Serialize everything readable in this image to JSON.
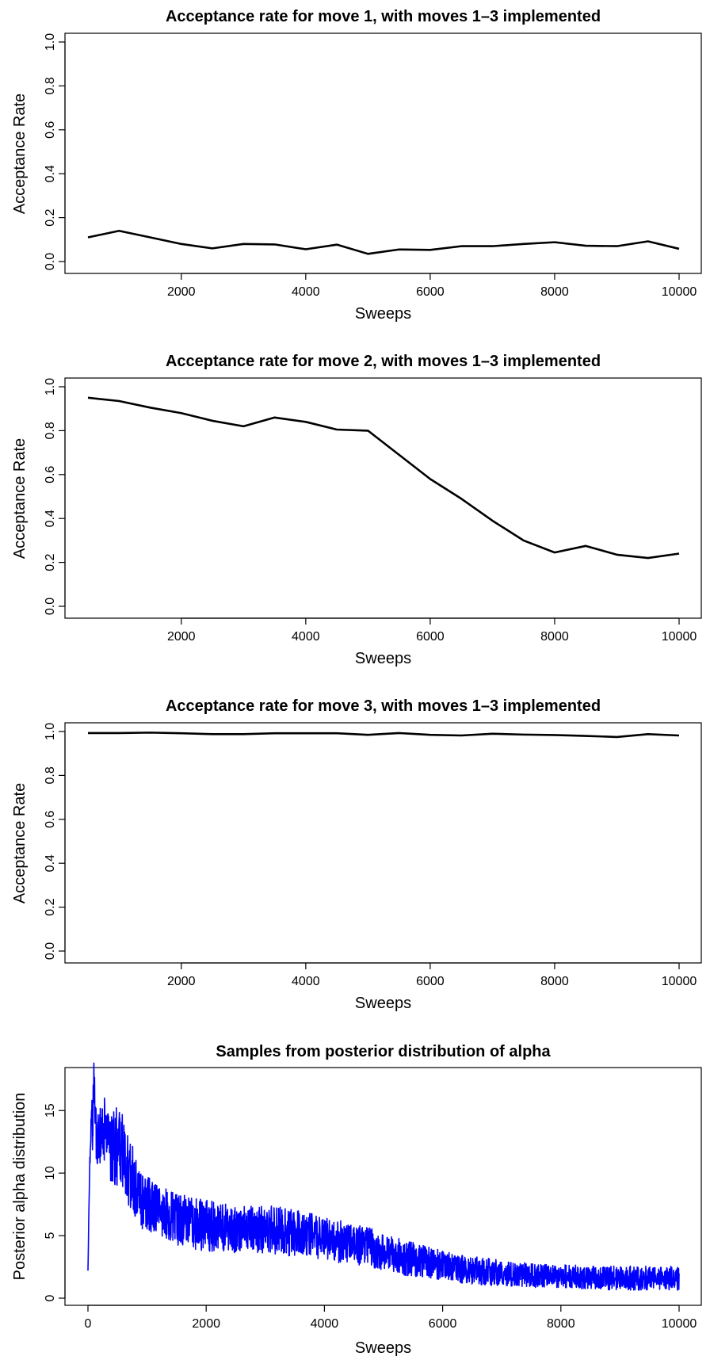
{
  "chart_data": [
    {
      "type": "line",
      "title": "Acceptance rate for move 1, with moves 1–3 implemented",
      "xlabel": "Sweeps",
      "ylabel": "Acceptance Rate",
      "xlim": [
        500,
        10000
      ],
      "ylim": [
        0,
        1
      ],
      "x_ticks": [
        2000,
        4000,
        6000,
        8000,
        10000
      ],
      "x_tick_labels": [
        "2000",
        "4000",
        "6000",
        "8000",
        "10000"
      ],
      "y_ticks": [
        0,
        0.2,
        0.4,
        0.6,
        0.8,
        1.0
      ],
      "y_tick_labels": [
        "0.0",
        "0.2",
        "0.4",
        "0.6",
        "0.8",
        "1.0"
      ],
      "grid": false,
      "series": [
        {
          "color": "#000000",
          "x": [
            500,
            1000,
            1500,
            2000,
            2500,
            3000,
            3500,
            4000,
            4500,
            5000,
            5500,
            6000,
            6500,
            7000,
            7500,
            8000,
            8500,
            9000,
            9500,
            10000
          ],
          "y": [
            0.11,
            0.14,
            0.11,
            0.08,
            0.06,
            0.08,
            0.078,
            0.056,
            0.077,
            0.035,
            0.055,
            0.053,
            0.07,
            0.07,
            0.08,
            0.088,
            0.072,
            0.07,
            0.092,
            0.058
          ]
        }
      ]
    },
    {
      "type": "line",
      "title": "Acceptance rate for move 2, with moves 1–3 implemented",
      "xlabel": "Sweeps",
      "ylabel": "Acceptance Rate",
      "xlim": [
        500,
        10000
      ],
      "ylim": [
        0,
        1
      ],
      "x_ticks": [
        2000,
        4000,
        6000,
        8000,
        10000
      ],
      "x_tick_labels": [
        "2000",
        "4000",
        "6000",
        "8000",
        "10000"
      ],
      "y_ticks": [
        0,
        0.2,
        0.4,
        0.6,
        0.8,
        1.0
      ],
      "y_tick_labels": [
        "0.0",
        "0.2",
        "0.4",
        "0.6",
        "0.8",
        "1.0"
      ],
      "grid": false,
      "series": [
        {
          "color": "#000000",
          "x": [
            500,
            1000,
            1500,
            2000,
            2500,
            3000,
            3500,
            4000,
            4500,
            5000,
            5500,
            6000,
            6500,
            7000,
            7500,
            8000,
            8500,
            9000,
            9500,
            10000
          ],
          "y": [
            0.95,
            0.935,
            0.905,
            0.88,
            0.845,
            0.82,
            0.86,
            0.84,
            0.805,
            0.8,
            0.69,
            0.58,
            0.49,
            0.39,
            0.3,
            0.245,
            0.275,
            0.235,
            0.22,
            0.24
          ]
        }
      ]
    },
    {
      "type": "line",
      "title": "Acceptance rate for move 3, with moves 1–3 implemented",
      "xlabel": "Sweeps",
      "ylabel": "Acceptance Rate",
      "xlim": [
        500,
        10000
      ],
      "ylim": [
        0,
        1
      ],
      "x_ticks": [
        2000,
        4000,
        6000,
        8000,
        10000
      ],
      "x_tick_labels": [
        "2000",
        "4000",
        "6000",
        "8000",
        "10000"
      ],
      "y_ticks": [
        0,
        0.2,
        0.4,
        0.6,
        0.8,
        1.0
      ],
      "y_tick_labels": [
        "0.0",
        "0.2",
        "0.4",
        "0.6",
        "0.8",
        "1.0"
      ],
      "grid": false,
      "series": [
        {
          "color": "#000000",
          "x": [
            500,
            1000,
            1500,
            2000,
            2500,
            3000,
            3500,
            4000,
            4500,
            5000,
            5500,
            6000,
            6500,
            7000,
            7500,
            8000,
            8500,
            9000,
            9500,
            10000
          ],
          "y": [
            0.993,
            0.993,
            0.995,
            0.992,
            0.988,
            0.988,
            0.992,
            0.992,
            0.992,
            0.985,
            0.993,
            0.985,
            0.982,
            0.99,
            0.986,
            0.984,
            0.98,
            0.975,
            0.988,
            0.982
          ]
        }
      ]
    },
    {
      "type": "line",
      "title": "Samples from posterior distribution of alpha",
      "xlabel": "Sweeps",
      "ylabel": "Posterior alpha distribution",
      "xlim": [
        0,
        10000
      ],
      "ylim": [
        0,
        18.5
      ],
      "x_ticks": [
        0,
        2000,
        4000,
        6000,
        8000,
        10000
      ],
      "x_tick_labels": [
        "0",
        "2000",
        "4000",
        "6000",
        "8000",
        "10000"
      ],
      "y_ticks": [
        0,
        5,
        10,
        15
      ],
      "y_tick_labels": [
        "0",
        "5",
        "10",
        "15"
      ],
      "grid": false,
      "series": [
        {
          "color": "#0000ff",
          "x": [
            0,
            20,
            40,
            60,
            80,
            100,
            120,
            150,
            200,
            300,
            400,
            500,
            600,
            650,
            700,
            800,
            900,
            1000,
            1200,
            1400,
            1600,
            1800,
            2000,
            2200,
            2400,
            2600,
            2800,
            3000,
            3200,
            3400,
            3600,
            3800,
            4000,
            4200,
            4400,
            4600,
            4800,
            5000,
            5200,
            5400,
            5600,
            5800,
            6000,
            6200,
            6400,
            6600,
            6800,
            7000,
            7200,
            7400,
            7600,
            7800,
            8000,
            8200,
            8400,
            8600,
            8800,
            9000,
            9200,
            9400,
            9600,
            9800,
            10000
          ],
          "y": [
            2.2,
            8.0,
            12.0,
            15.0,
            13.0,
            18.8,
            14.0,
            13.0,
            13.5,
            13.0,
            12.5,
            12.0,
            11.5,
            10.5,
            10.0,
            9.0,
            8.0,
            7.5,
            7.0,
            6.5,
            6.2,
            6.0,
            5.8,
            5.7,
            5.6,
            5.5,
            5.5,
            5.5,
            5.4,
            5.3,
            5.2,
            5.0,
            4.8,
            4.6,
            4.4,
            4.2,
            4.0,
            3.7,
            3.4,
            3.2,
            3.0,
            2.8,
            2.6,
            2.4,
            2.3,
            2.2,
            2.1,
            2.0,
            1.9,
            1.9,
            1.8,
            1.8,
            1.7,
            1.7,
            1.7,
            1.6,
            1.6,
            1.6,
            1.6,
            1.6,
            1.6,
            1.6,
            1.6
          ],
          "noise_amplitude": [
            0,
            0.5,
            0.8,
            1.0,
            1.2,
            1.3,
            1.5,
            1.6,
            1.8,
            1.9,
            2.0,
            2.0,
            2.0,
            1.9,
            1.8,
            1.6,
            1.5,
            1.4,
            1.3,
            1.3,
            1.3,
            1.3,
            1.3,
            1.2,
            1.2,
            1.2,
            1.2,
            1.2,
            1.2,
            1.2,
            1.1,
            1.1,
            1.1,
            1.1,
            1.0,
            1.0,
            1.0,
            0.9,
            0.9,
            0.9,
            0.8,
            0.8,
            0.8,
            0.7,
            0.7,
            0.7,
            0.7,
            0.6,
            0.6,
            0.6,
            0.6,
            0.6,
            0.6,
            0.6,
            0.6,
            0.6,
            0.6,
            0.6,
            0.6,
            0.6,
            0.6,
            0.6,
            0.6
          ]
        }
      ]
    }
  ]
}
